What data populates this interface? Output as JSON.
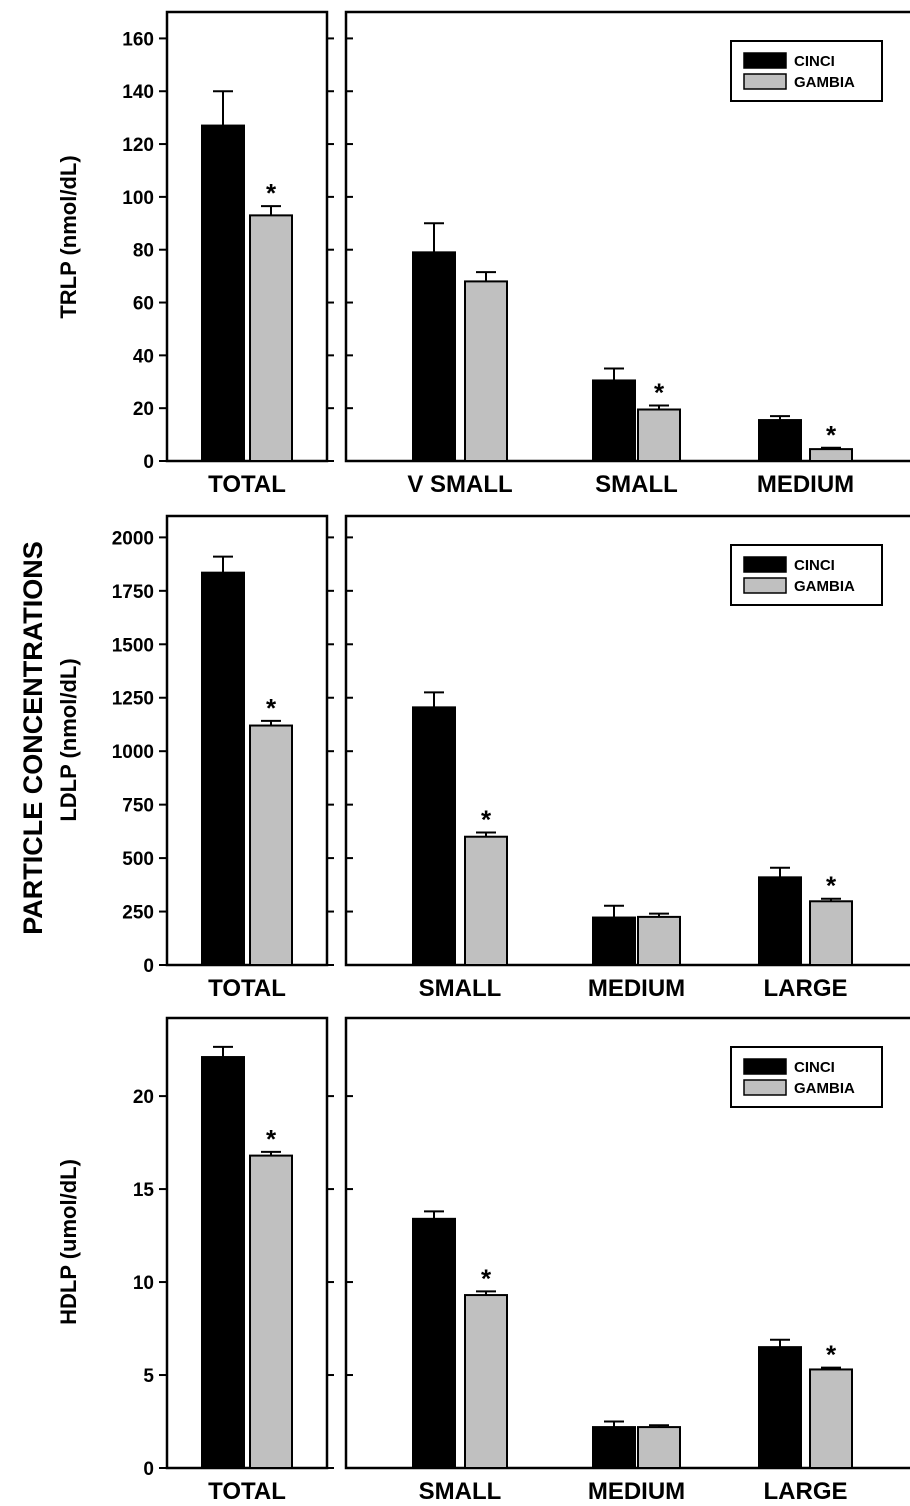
{
  "figure": {
    "title": "PARTICLE CONCENTRATIONS"
  },
  "chart_data": [
    {
      "type": "bar",
      "ylabel": "TRLP (nmol/dL)",
      "ylim": [
        0,
        170
      ],
      "yticks": [
        0,
        20,
        40,
        60,
        80,
        100,
        120,
        140,
        160
      ],
      "yticklabels": [
        "0",
        "20",
        "40",
        "60",
        "80",
        "100",
        "120",
        "140",
        "160"
      ],
      "legend": {
        "placement": "top-right",
        "entries": [
          "CINCI",
          "GAMBIA"
        ]
      },
      "series": [
        {
          "name": "CINCI",
          "color": "#000000"
        },
        {
          "name": "GAMBIA",
          "color": "#c0c0c0"
        }
      ],
      "total": {
        "category": "TOTAL",
        "values": [
          127,
          93
        ],
        "errors": [
          13,
          3.5
        ],
        "significant": [
          false,
          true
        ]
      },
      "subclasses": [
        {
          "category": "V SMALL",
          "values": [
            79,
            68
          ],
          "errors": [
            11,
            3.5
          ],
          "significant": [
            false,
            false
          ]
        },
        {
          "category": "SMALL",
          "values": [
            30.5,
            19.5
          ],
          "errors": [
            4.5,
            1.5
          ],
          "significant": [
            false,
            true
          ]
        },
        {
          "category": "MEDIUM",
          "values": [
            15.5,
            4.5
          ],
          "errors": [
            1.5,
            0.5
          ],
          "significant": [
            false,
            true
          ]
        }
      ]
    },
    {
      "type": "bar",
      "ylabel": "LDLP (nmol/dL)",
      "ylim": [
        0,
        2100
      ],
      "yticks": [
        0,
        250,
        500,
        750,
        1000,
        1250,
        1500,
        1750,
        2000
      ],
      "yticklabels": [
        "0",
        "250",
        "500",
        "750",
        "1000",
        "1250",
        "1500",
        "1750",
        "2000"
      ],
      "legend": {
        "placement": "top-right",
        "entries": [
          "CINCI",
          "GAMBIA"
        ]
      },
      "series": [
        {
          "name": "CINCI",
          "color": "#000000"
        },
        {
          "name": "GAMBIA",
          "color": "#c0c0c0"
        }
      ],
      "total": {
        "category": "TOTAL",
        "values": [
          1835,
          1120
        ],
        "errors": [
          75,
          22
        ],
        "significant": [
          false,
          true
        ]
      },
      "subclasses": [
        {
          "category": "SMALL",
          "values": [
            1205,
            600
          ],
          "errors": [
            70,
            20
          ],
          "significant": [
            false,
            true
          ]
        },
        {
          "category": "MEDIUM",
          "values": [
            222,
            225
          ],
          "errors": [
            55,
            15
          ],
          "significant": [
            false,
            false
          ]
        },
        {
          "category": "LARGE",
          "values": [
            410,
            298
          ],
          "errors": [
            45,
            12
          ],
          "significant": [
            false,
            true
          ]
        }
      ]
    },
    {
      "type": "bar",
      "ylabel": "HDLP (umol/dL)",
      "ylim": [
        0,
        24.2
      ],
      "yticks": [
        0,
        5,
        10,
        15,
        20
      ],
      "yticklabels": [
        "0",
        "5",
        "10",
        "15",
        "20"
      ],
      "legend": {
        "placement": "top-right",
        "entries": [
          "CINCI",
          "GAMBIA"
        ]
      },
      "series": [
        {
          "name": "CINCI",
          "color": "#000000"
        },
        {
          "name": "GAMBIA",
          "color": "#c0c0c0"
        }
      ],
      "total": {
        "category": "TOTAL",
        "values": [
          22.1,
          16.8
        ],
        "errors": [
          0.55,
          0.2
        ],
        "significant": [
          false,
          true
        ]
      },
      "subclasses": [
        {
          "category": "SMALL",
          "values": [
            13.4,
            9.3
          ],
          "errors": [
            0.4,
            0.2
          ],
          "significant": [
            false,
            true
          ]
        },
        {
          "category": "MEDIUM",
          "values": [
            2.2,
            2.2
          ],
          "errors": [
            0.3,
            0.1
          ],
          "significant": [
            false,
            false
          ]
        },
        {
          "category": "LARGE",
          "values": [
            6.5,
            5.3
          ],
          "errors": [
            0.4,
            0.1
          ],
          "significant": [
            false,
            true
          ]
        }
      ]
    }
  ]
}
